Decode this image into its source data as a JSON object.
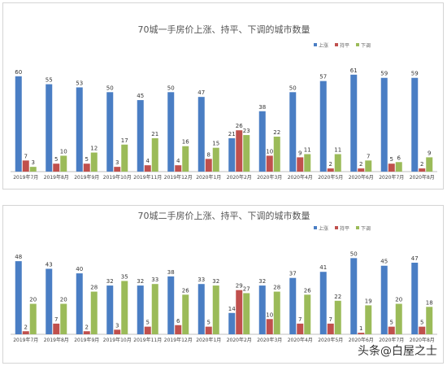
{
  "colors": {
    "up": "#4a7ec4",
    "flat": "#c0504d",
    "down": "#9bbb59",
    "axis": "#bfbfbf"
  },
  "chart_data": [
    {
      "type": "bar",
      "title": "70城一手房价上涨、持平、下调的城市数量",
      "categories": [
        "2019年7月",
        "2019年8月",
        "2019年9月",
        "2019年10月",
        "2019年11月",
        "2019年12月",
        "2020年1月",
        "2020年2月",
        "2020年3月",
        "2020年4月",
        "2020年5月",
        "2020年6月",
        "2020年7月",
        "2020年8月"
      ],
      "series": [
        {
          "name": "上涨",
          "values": [
            60,
            55,
            53,
            50,
            45,
            50,
            47,
            21,
            38,
            50,
            57,
            61,
            59,
            59
          ]
        },
        {
          "name": "持平",
          "values": [
            7,
            5,
            5,
            3,
            4,
            4,
            8,
            26,
            10,
            9,
            2,
            2,
            5,
            2
          ]
        },
        {
          "name": "下调",
          "values": [
            3,
            10,
            12,
            17,
            21,
            16,
            15,
            23,
            22,
            11,
            11,
            7,
            6,
            9
          ]
        }
      ],
      "ylim": [
        0,
        65
      ]
    },
    {
      "type": "bar",
      "title": "70城二手房价上涨、持平、下调的城市数量",
      "categories": [
        "2019年7月",
        "2019年8月",
        "2019年9月",
        "2019年10月",
        "2019年11月",
        "2019年12月",
        "2020年1月",
        "2020年2月",
        "2020年3月",
        "2020年4月",
        "2020年5月",
        "2020年6月",
        "2020年7月",
        "2020年8月"
      ],
      "series": [
        {
          "name": "上涨",
          "values": [
            48,
            43,
            40,
            32,
            32,
            38,
            33,
            14,
            32,
            37,
            41,
            50,
            45,
            47
          ]
        },
        {
          "name": "持平",
          "values": [
            2,
            7,
            2,
            3,
            5,
            6,
            5,
            29,
            10,
            7,
            7,
            1,
            5,
            5
          ]
        },
        {
          "name": "下调",
          "values": [
            20,
            20,
            28,
            35,
            33,
            26,
            32,
            27,
            28,
            26,
            22,
            19,
            20,
            18
          ]
        }
      ],
      "ylim": [
        0,
        55
      ]
    }
  ],
  "watermark": "头条@白屋之士"
}
